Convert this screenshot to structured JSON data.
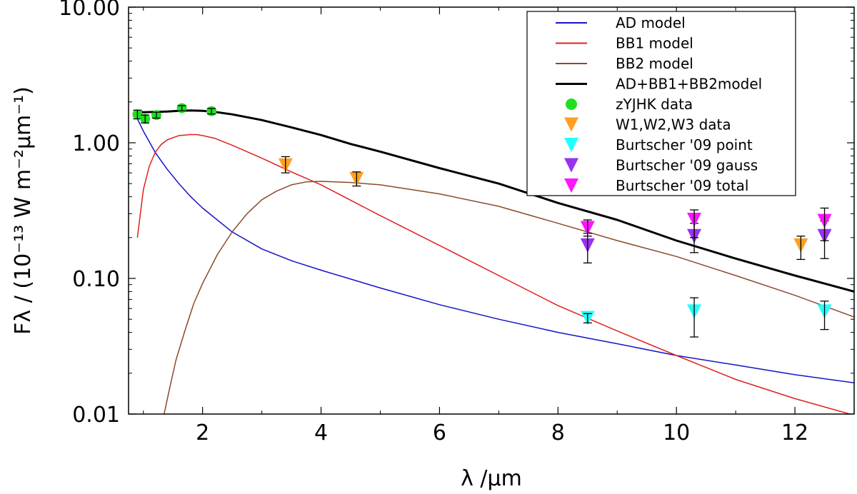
{
  "chart_data": {
    "type": "line",
    "title": "",
    "xlabel": "λ /μm",
    "ylabel": "Fλ / (10⁻¹³ W m⁻²μm⁻¹)",
    "xlim": [
      0.75,
      13.0
    ],
    "ylim": [
      0.01,
      10.0
    ],
    "yscale": "log",
    "x_ticks": [
      2,
      4,
      6,
      8,
      10,
      12
    ],
    "x_tick_labels": [
      "2",
      "4",
      "6",
      "8",
      "10",
      "12"
    ],
    "y_ticks": [
      0.01,
      0.1,
      1.0,
      10.0
    ],
    "y_tick_labels": [
      "0.01",
      "0.10",
      "1.00",
      "10.00"
    ],
    "legend_position": "top-right",
    "legend": [
      {
        "label": "AD model",
        "kind": "line",
        "color": "#1414c8"
      },
      {
        "label": "BB1 model",
        "kind": "line",
        "color": "#e02020"
      },
      {
        "label": "BB2 model",
        "kind": "line",
        "color": "#8b4a2a"
      },
      {
        "label": "AD+BB1+BB2model",
        "kind": "line",
        "color": "#000000"
      },
      {
        "label": "zYJHK data",
        "kind": "circle",
        "color": "#22dd22"
      },
      {
        "label": "W1,W2,W3 data",
        "kind": "triangle",
        "color": "#ffa020"
      },
      {
        "label": "Burtscher '09 point",
        "kind": "triangle",
        "color": "#22ffff"
      },
      {
        "label": "Burtscher '09 gauss",
        "kind": "triangle",
        "color": "#9932ee"
      },
      {
        "label": "Burtscher '09 total",
        "kind": "triangle",
        "color": "#ff14ff"
      }
    ],
    "lines": [
      {
        "name": "AD model",
        "color": "#1414c8",
        "x": [
          0.9,
          1.0,
          1.2,
          1.4,
          1.6,
          1.8,
          2.0,
          2.5,
          3.0,
          3.5,
          4.0,
          5.0,
          6.0,
          7.0,
          8.0,
          9.0,
          10.0,
          11.0,
          12.0,
          13.0
        ],
        "y": [
          1.5,
          1.22,
          0.85,
          0.64,
          0.5,
          0.4,
          0.33,
          0.22,
          0.165,
          0.135,
          0.115,
          0.085,
          0.064,
          0.05,
          0.04,
          0.033,
          0.027,
          0.023,
          0.0195,
          0.017
        ]
      },
      {
        "name": "BB1 model",
        "color": "#e02020",
        "x": [
          0.9,
          1.0,
          1.1,
          1.2,
          1.3,
          1.4,
          1.6,
          1.8,
          1.9,
          2.0,
          2.2,
          2.5,
          3.0,
          3.5,
          4.0,
          5.0,
          6.0,
          7.0,
          8.0,
          9.0,
          10.0,
          11.0,
          12.0,
          13.0
        ],
        "y": [
          0.2,
          0.45,
          0.67,
          0.85,
          0.97,
          1.05,
          1.13,
          1.15,
          1.15,
          1.13,
          1.08,
          0.96,
          0.77,
          0.61,
          0.49,
          0.29,
          0.175,
          0.105,
          0.063,
          0.041,
          0.027,
          0.018,
          0.013,
          0.0098
        ]
      },
      {
        "name": "BB2 model",
        "color": "#8b4a2a",
        "x": [
          1.35,
          1.45,
          1.55,
          1.7,
          1.85,
          2.0,
          2.25,
          2.5,
          2.75,
          3.0,
          3.25,
          3.5,
          3.75,
          4.0,
          4.5,
          5.0,
          6.0,
          7.0,
          8.0,
          9.0,
          10.0,
          11.0,
          12.0,
          13.0
        ],
        "y": [
          0.01,
          0.016,
          0.025,
          0.041,
          0.065,
          0.092,
          0.15,
          0.22,
          0.3,
          0.38,
          0.44,
          0.49,
          0.515,
          0.52,
          0.51,
          0.49,
          0.42,
          0.34,
          0.255,
          0.19,
          0.145,
          0.105,
          0.075,
          0.052
        ]
      },
      {
        "name": "AD+BB1+BB2model",
        "color": "#000000",
        "width": 3,
        "x": [
          0.9,
          1.0,
          1.2,
          1.4,
          1.6,
          1.8,
          2.0,
          2.2,
          2.5,
          3.0,
          3.5,
          4.0,
          4.5,
          5.0,
          6.0,
          7.0,
          8.0,
          9.0,
          10.0,
          11.0,
          12.0,
          13.0
        ],
        "y": [
          1.7,
          1.68,
          1.69,
          1.7,
          1.72,
          1.73,
          1.72,
          1.69,
          1.62,
          1.47,
          1.3,
          1.14,
          0.98,
          0.86,
          0.65,
          0.5,
          0.36,
          0.27,
          0.19,
          0.14,
          0.105,
          0.08
        ]
      }
    ],
    "points": [
      {
        "name": "zYJHK data",
        "marker": "circle",
        "color": "#22dd22",
        "x": [
          0.9,
          1.03,
          1.22,
          1.65,
          2.15
        ],
        "y": [
          1.62,
          1.5,
          1.6,
          1.8,
          1.71
        ],
        "err_low": [
          1.5,
          1.4,
          1.52,
          1.72,
          1.63
        ],
        "err_high": [
          1.74,
          1.6,
          1.68,
          1.88,
          1.79
        ]
      },
      {
        "name": "W1,W2,W3 data",
        "marker": "triangle",
        "color": "#ffa020",
        "x": [
          3.4,
          4.6,
          12.1
        ],
        "y": [
          0.68,
          0.54,
          0.175
        ],
        "err_low": [
          0.6,
          0.48,
          0.138
        ],
        "err_high": [
          0.79,
          0.61,
          0.205
        ]
      },
      {
        "name": "Burtscher '09 point",
        "marker": "triangle",
        "color": "#22ffff",
        "x": [
          8.5,
          10.3,
          12.5
        ],
        "y": [
          0.051,
          0.057,
          0.057
        ],
        "err_low": [
          0.047,
          0.037,
          0.042
        ],
        "err_high": [
          0.055,
          0.072,
          0.068
        ]
      },
      {
        "name": "Burtscher '09 gauss",
        "marker": "triangle",
        "color": "#9932ee",
        "x": [
          8.5,
          10.3,
          12.5
        ],
        "y": [
          0.175,
          0.205,
          0.205
        ],
        "err_low": [
          0.13,
          0.155,
          0.14
        ],
        "err_high": [
          0.215,
          0.255,
          0.265
        ]
      },
      {
        "name": "Burtscher '09 total",
        "marker": "triangle",
        "color": "#ff14ff",
        "x": [
          8.5,
          10.3,
          12.5
        ],
        "y": [
          0.235,
          0.27,
          0.265
        ],
        "err_low": [
          0.205,
          0.2,
          0.19
        ],
        "err_high": [
          0.27,
          0.32,
          0.33
        ]
      }
    ]
  }
}
